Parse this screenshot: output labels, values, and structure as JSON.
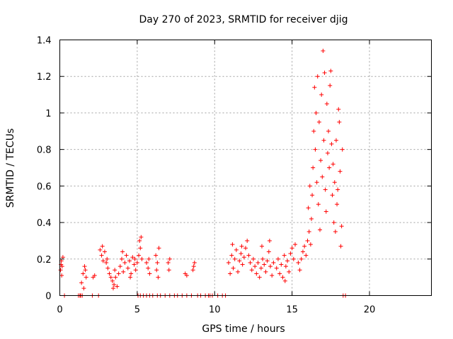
{
  "chart_data": {
    "type": "scatter",
    "title": "Day 270 of 2023, SRMTID for receiver djig",
    "xlabel": "GPS time / hours",
    "ylabel": "SRMTID / TECUs",
    "xlim": [
      0,
      24
    ],
    "ylim": [
      0,
      1.4
    ],
    "xticks": [
      0,
      5,
      10,
      15,
      20
    ],
    "yticks": [
      0,
      0.2,
      0.4,
      0.6,
      0.8,
      1,
      1.2,
      1.4
    ],
    "xtick_labels": [
      "0",
      "5",
      "10",
      "15",
      "20"
    ],
    "ytick_labels": [
      "0",
      "0.2",
      "0.4",
      "0.6",
      "0.8",
      "1",
      "1.2",
      "1.4"
    ],
    "grid": true,
    "marker": "+",
    "series_color": "#ff0000",
    "series": [
      {
        "name": "SRMTID",
        "points": [
          [
            0.05,
            0.14
          ],
          [
            0.1,
            0.19
          ],
          [
            0.15,
            0.16
          ],
          [
            0.2,
            0.21
          ],
          [
            0.12,
            0.11
          ],
          [
            0.08,
            0.17
          ],
          [
            1.4,
            0.07
          ],
          [
            1.5,
            0.12
          ],
          [
            1.6,
            0.16
          ],
          [
            1.7,
            0.1
          ],
          [
            1.55,
            0.04
          ],
          [
            1.65,
            0.14
          ],
          [
            2.15,
            0.1
          ],
          [
            2.25,
            0.11
          ],
          [
            2.6,
            0.25
          ],
          [
            2.7,
            0.22
          ],
          [
            2.8,
            0.19
          ],
          [
            2.9,
            0.24
          ],
          [
            3.0,
            0.18
          ],
          [
            3.1,
            0.15
          ],
          [
            3.2,
            0.12
          ],
          [
            3.3,
            0.1
          ],
          [
            2.75,
            0.27
          ],
          [
            3.05,
            0.2
          ],
          [
            3.4,
            0.08
          ],
          [
            3.5,
            0.06
          ],
          [
            3.6,
            0.1
          ],
          [
            3.7,
            0.05
          ],
          [
            3.8,
            0.12
          ],
          [
            3.55,
            0.14
          ],
          [
            3.45,
            0.04
          ],
          [
            3.9,
            0.16
          ],
          [
            4.0,
            0.2
          ],
          [
            4.1,
            0.13
          ],
          [
            4.2,
            0.18
          ],
          [
            4.3,
            0.22
          ],
          [
            4.4,
            0.15
          ],
          [
            4.5,
            0.19
          ],
          [
            4.6,
            0.12
          ],
          [
            4.7,
            0.21
          ],
          [
            4.8,
            0.17
          ],
          [
            4.9,
            0.14
          ],
          [
            5.0,
            0.18
          ],
          [
            4.05,
            0.24
          ],
          [
            4.55,
            0.1
          ],
          [
            4.85,
            0.2
          ],
          [
            5.15,
            0.3
          ],
          [
            5.2,
            0.26
          ],
          [
            5.25,
            0.32
          ],
          [
            5.1,
            0.22
          ],
          [
            5.3,
            0.2
          ],
          [
            5.6,
            0.18
          ],
          [
            5.7,
            0.15
          ],
          [
            5.8,
            0.12
          ],
          [
            5.75,
            0.2
          ],
          [
            6.2,
            0.22
          ],
          [
            6.3,
            0.18
          ],
          [
            6.4,
            0.26
          ],
          [
            6.25,
            0.14
          ],
          [
            6.35,
            0.1
          ],
          [
            7.0,
            0.18
          ],
          [
            7.1,
            0.2
          ],
          [
            7.05,
            0.14
          ],
          [
            8.1,
            0.12
          ],
          [
            8.2,
            0.11
          ],
          [
            8.6,
            0.14
          ],
          [
            8.7,
            0.18
          ],
          [
            8.65,
            0.16
          ],
          [
            10.9,
            0.18
          ],
          [
            11.0,
            0.12
          ],
          [
            11.1,
            0.22
          ],
          [
            11.2,
            0.15
          ],
          [
            11.3,
            0.2
          ],
          [
            11.4,
            0.25
          ],
          [
            11.5,
            0.13
          ],
          [
            11.6,
            0.19
          ],
          [
            11.7,
            0.23
          ],
          [
            11.8,
            0.17
          ],
          [
            11.9,
            0.21
          ],
          [
            12.0,
            0.26
          ],
          [
            12.1,
            0.3
          ],
          [
            12.2,
            0.22
          ],
          [
            12.3,
            0.18
          ],
          [
            11.15,
            0.28
          ],
          [
            11.75,
            0.27
          ],
          [
            12.4,
            0.14
          ],
          [
            12.5,
            0.2
          ],
          [
            12.6,
            0.16
          ],
          [
            12.7,
            0.12
          ],
          [
            12.8,
            0.18
          ],
          [
            12.9,
            0.1
          ],
          [
            13.0,
            0.15
          ],
          [
            13.1,
            0.2
          ],
          [
            13.2,
            0.17
          ],
          [
            13.3,
            0.13
          ],
          [
            13.4,
            0.19
          ],
          [
            13.5,
            0.24
          ],
          [
            13.6,
            0.16
          ],
          [
            13.7,
            0.11
          ],
          [
            13.8,
            0.18
          ],
          [
            13.05,
            0.27
          ],
          [
            13.55,
            0.3
          ],
          [
            14.0,
            0.15
          ],
          [
            14.1,
            0.2
          ],
          [
            14.2,
            0.12
          ],
          [
            14.3,
            0.17
          ],
          [
            14.4,
            0.1
          ],
          [
            14.5,
            0.22
          ],
          [
            14.6,
            0.16
          ],
          [
            14.7,
            0.19
          ],
          [
            14.8,
            0.13
          ],
          [
            14.9,
            0.23
          ],
          [
            15.0,
            0.26
          ],
          [
            15.1,
            0.2
          ],
          [
            15.2,
            0.28
          ],
          [
            14.55,
            0.08
          ],
          [
            15.4,
            0.18
          ],
          [
            15.5,
            0.14
          ],
          [
            15.6,
            0.2
          ],
          [
            15.7,
            0.24
          ],
          [
            15.8,
            0.27
          ],
          [
            15.9,
            0.22
          ],
          [
            16.0,
            0.3
          ],
          [
            16.1,
            0.35
          ],
          [
            16.2,
            0.28
          ],
          [
            16.05,
            0.48
          ],
          [
            16.15,
            0.6
          ],
          [
            16.25,
            0.42
          ],
          [
            16.3,
            0.55
          ],
          [
            16.35,
            0.7
          ],
          [
            16.4,
            0.9
          ],
          [
            16.45,
            1.14
          ],
          [
            16.5,
            0.8
          ],
          [
            16.55,
            1.0
          ],
          [
            16.6,
            0.62
          ],
          [
            16.65,
            1.2
          ],
          [
            16.7,
            0.5
          ],
          [
            16.75,
            0.95
          ],
          [
            16.8,
            0.36
          ],
          [
            16.85,
            0.74
          ],
          [
            16.9,
            1.1
          ],
          [
            16.95,
            0.65
          ],
          [
            17.0,
            1.34
          ],
          [
            17.05,
            0.85
          ],
          [
            17.1,
            1.22
          ],
          [
            17.15,
            0.58
          ],
          [
            17.2,
            0.46
          ],
          [
            17.25,
            1.05
          ],
          [
            17.3,
            0.78
          ],
          [
            17.35,
            0.9
          ],
          [
            17.4,
            0.7
          ],
          [
            17.45,
            1.15
          ],
          [
            17.5,
            1.23
          ],
          [
            17.55,
            0.83
          ],
          [
            17.6,
            0.55
          ],
          [
            17.65,
            0.72
          ],
          [
            17.7,
            0.4
          ],
          [
            17.75,
            0.62
          ],
          [
            17.8,
            0.35
          ],
          [
            17.85,
            0.85
          ],
          [
            17.9,
            0.5
          ],
          [
            17.95,
            0.58
          ],
          [
            18.0,
            1.02
          ],
          [
            18.05,
            0.95
          ],
          [
            18.1,
            0.68
          ],
          [
            18.15,
            0.27
          ],
          [
            18.2,
            0.38
          ],
          [
            18.25,
            0.8
          ],
          [
            0.3,
            0.0
          ],
          [
            1.2,
            0.0
          ],
          [
            1.3,
            0.0
          ],
          [
            1.35,
            0.0
          ],
          [
            1.45,
            0.0
          ],
          [
            2.1,
            0.0
          ],
          [
            2.5,
            0.0
          ],
          [
            5.05,
            0.0
          ],
          [
            5.2,
            0.0
          ],
          [
            5.4,
            0.0
          ],
          [
            5.6,
            0.0
          ],
          [
            5.8,
            0.0
          ],
          [
            6.0,
            0.0
          ],
          [
            6.3,
            0.0
          ],
          [
            6.5,
            0.0
          ],
          [
            6.8,
            0.0
          ],
          [
            7.1,
            0.0
          ],
          [
            7.4,
            0.0
          ],
          [
            7.6,
            0.0
          ],
          [
            7.9,
            0.0
          ],
          [
            8.2,
            0.0
          ],
          [
            8.5,
            0.0
          ],
          [
            8.9,
            0.0
          ],
          [
            9.1,
            0.0
          ],
          [
            9.4,
            0.0
          ],
          [
            9.6,
            0.0
          ],
          [
            9.7,
            0.0
          ],
          [
            9.85,
            0.0
          ],
          [
            10.2,
            0.0
          ],
          [
            10.5,
            0.0
          ],
          [
            10.7,
            0.0
          ],
          [
            18.3,
            0.0
          ],
          [
            18.45,
            0.0
          ]
        ]
      }
    ]
  }
}
